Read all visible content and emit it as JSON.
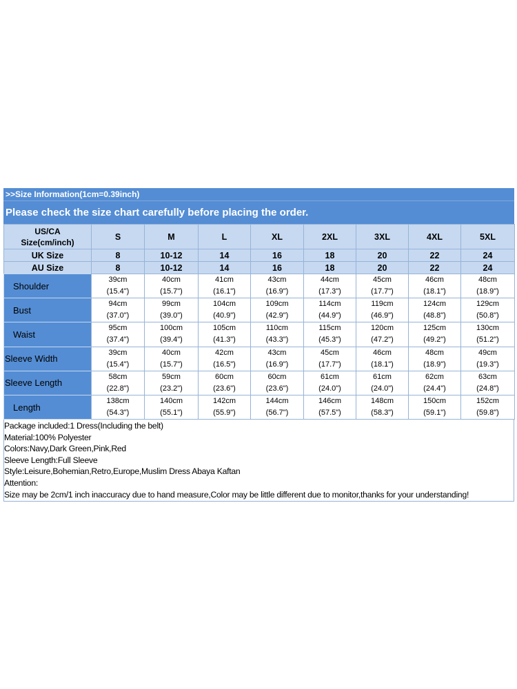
{
  "header": {
    "info": ">>Size Information(1cm=0.39inch)",
    "notice": "Please check the size chart carefully before placing the order."
  },
  "table": {
    "size_header": [
      "US/CA\nSize(cm/inch)",
      "S",
      "M",
      "L",
      "XL",
      "2XL",
      "3XL",
      "4XL",
      "5XL"
    ],
    "uk": [
      "UK Size",
      "8",
      "10-12",
      "14",
      "16",
      "18",
      "20",
      "22",
      "24"
    ],
    "au": [
      "AU Size",
      "8",
      "10-12",
      "14",
      "16",
      "18",
      "20",
      "22",
      "24"
    ],
    "rows": [
      {
        "label": "Shoulder",
        "cells": [
          [
            "39cm",
            "(15.4\")"
          ],
          [
            "40cm",
            "(15.7\")"
          ],
          [
            "41cm",
            "(16.1\")"
          ],
          [
            "43cm",
            "(16.9\")"
          ],
          [
            "44cm",
            "(17.3\")"
          ],
          [
            "45cm",
            "(17.7\")"
          ],
          [
            "46cm",
            "(18.1\")"
          ],
          [
            "48cm",
            "(18.9\")"
          ]
        ]
      },
      {
        "label": "Bust",
        "cells": [
          [
            "94cm",
            "(37.0\")"
          ],
          [
            "99cm",
            "(39.0\")"
          ],
          [
            "104cm",
            "(40.9\")"
          ],
          [
            "109cm",
            "(42.9\")"
          ],
          [
            "114cm",
            "(44.9\")"
          ],
          [
            "119cm",
            "(46.9\")"
          ],
          [
            "124cm",
            "(48.8\")"
          ],
          [
            "129cm",
            "(50.8\")"
          ]
        ]
      },
      {
        "label": "Waist",
        "cells": [
          [
            "95cm",
            "(37.4\")"
          ],
          [
            "100cm",
            "(39.4\")"
          ],
          [
            "105cm",
            "(41.3\")"
          ],
          [
            "110cm",
            "(43.3\")"
          ],
          [
            "115cm",
            "(45.3\")"
          ],
          [
            "120cm",
            "(47.2\")"
          ],
          [
            "125cm",
            "(49.2\")"
          ],
          [
            "130cm",
            "(51.2\")"
          ]
        ]
      },
      {
        "label": "Sleeve Width",
        "cells": [
          [
            "39cm",
            "(15.4\")"
          ],
          [
            "40cm",
            "(15.7\")"
          ],
          [
            "42cm",
            "(16.5\")"
          ],
          [
            "43cm",
            "(16.9\")"
          ],
          [
            "45cm",
            "(17.7\")"
          ],
          [
            "46cm",
            "(18.1\")"
          ],
          [
            "48cm",
            "(18.9\")"
          ],
          [
            "49cm",
            "(19.3\")"
          ]
        ]
      },
      {
        "label": "Sleeve Length",
        "cells": [
          [
            "58cm",
            "(22.8\")"
          ],
          [
            "59cm",
            "(23.2\")"
          ],
          [
            "60cm",
            "(23.6\")"
          ],
          [
            "60cm",
            "(23.6\")"
          ],
          [
            "61cm",
            "(24.0\")"
          ],
          [
            "61cm",
            "(24.0\")"
          ],
          [
            "62cm",
            "(24.4\")"
          ],
          [
            "63cm",
            "(24.8\")"
          ]
        ]
      },
      {
        "label": "Length",
        "cells": [
          [
            "138cm",
            "(54.3\")"
          ],
          [
            "140cm",
            "(55.1\")"
          ],
          [
            "142cm",
            "(55.9\")"
          ],
          [
            "144cm",
            "(56.7\")"
          ],
          [
            "146cm",
            "(57.5\")"
          ],
          [
            "148cm",
            "(58.3\")"
          ],
          [
            "150cm",
            "(59.1\")"
          ],
          [
            "152cm",
            "(59.8\")"
          ]
        ]
      }
    ]
  },
  "notes": [
    "Package included:1 Dress(Including the belt)",
    "Material:100% Polyester",
    "Colors:Navy,Dark Green,Pink,Red",
    "Sleeve Length:Full Sleeve",
    "Style:Leisure,Bohemian,Retro,Europe,Muslim Dress Abaya Kaftan",
    "Attention:",
    "Size may be 2cm/1 inch inaccuracy due to hand measure,Color may be little different due to monitor,thanks for your understanding!"
  ]
}
